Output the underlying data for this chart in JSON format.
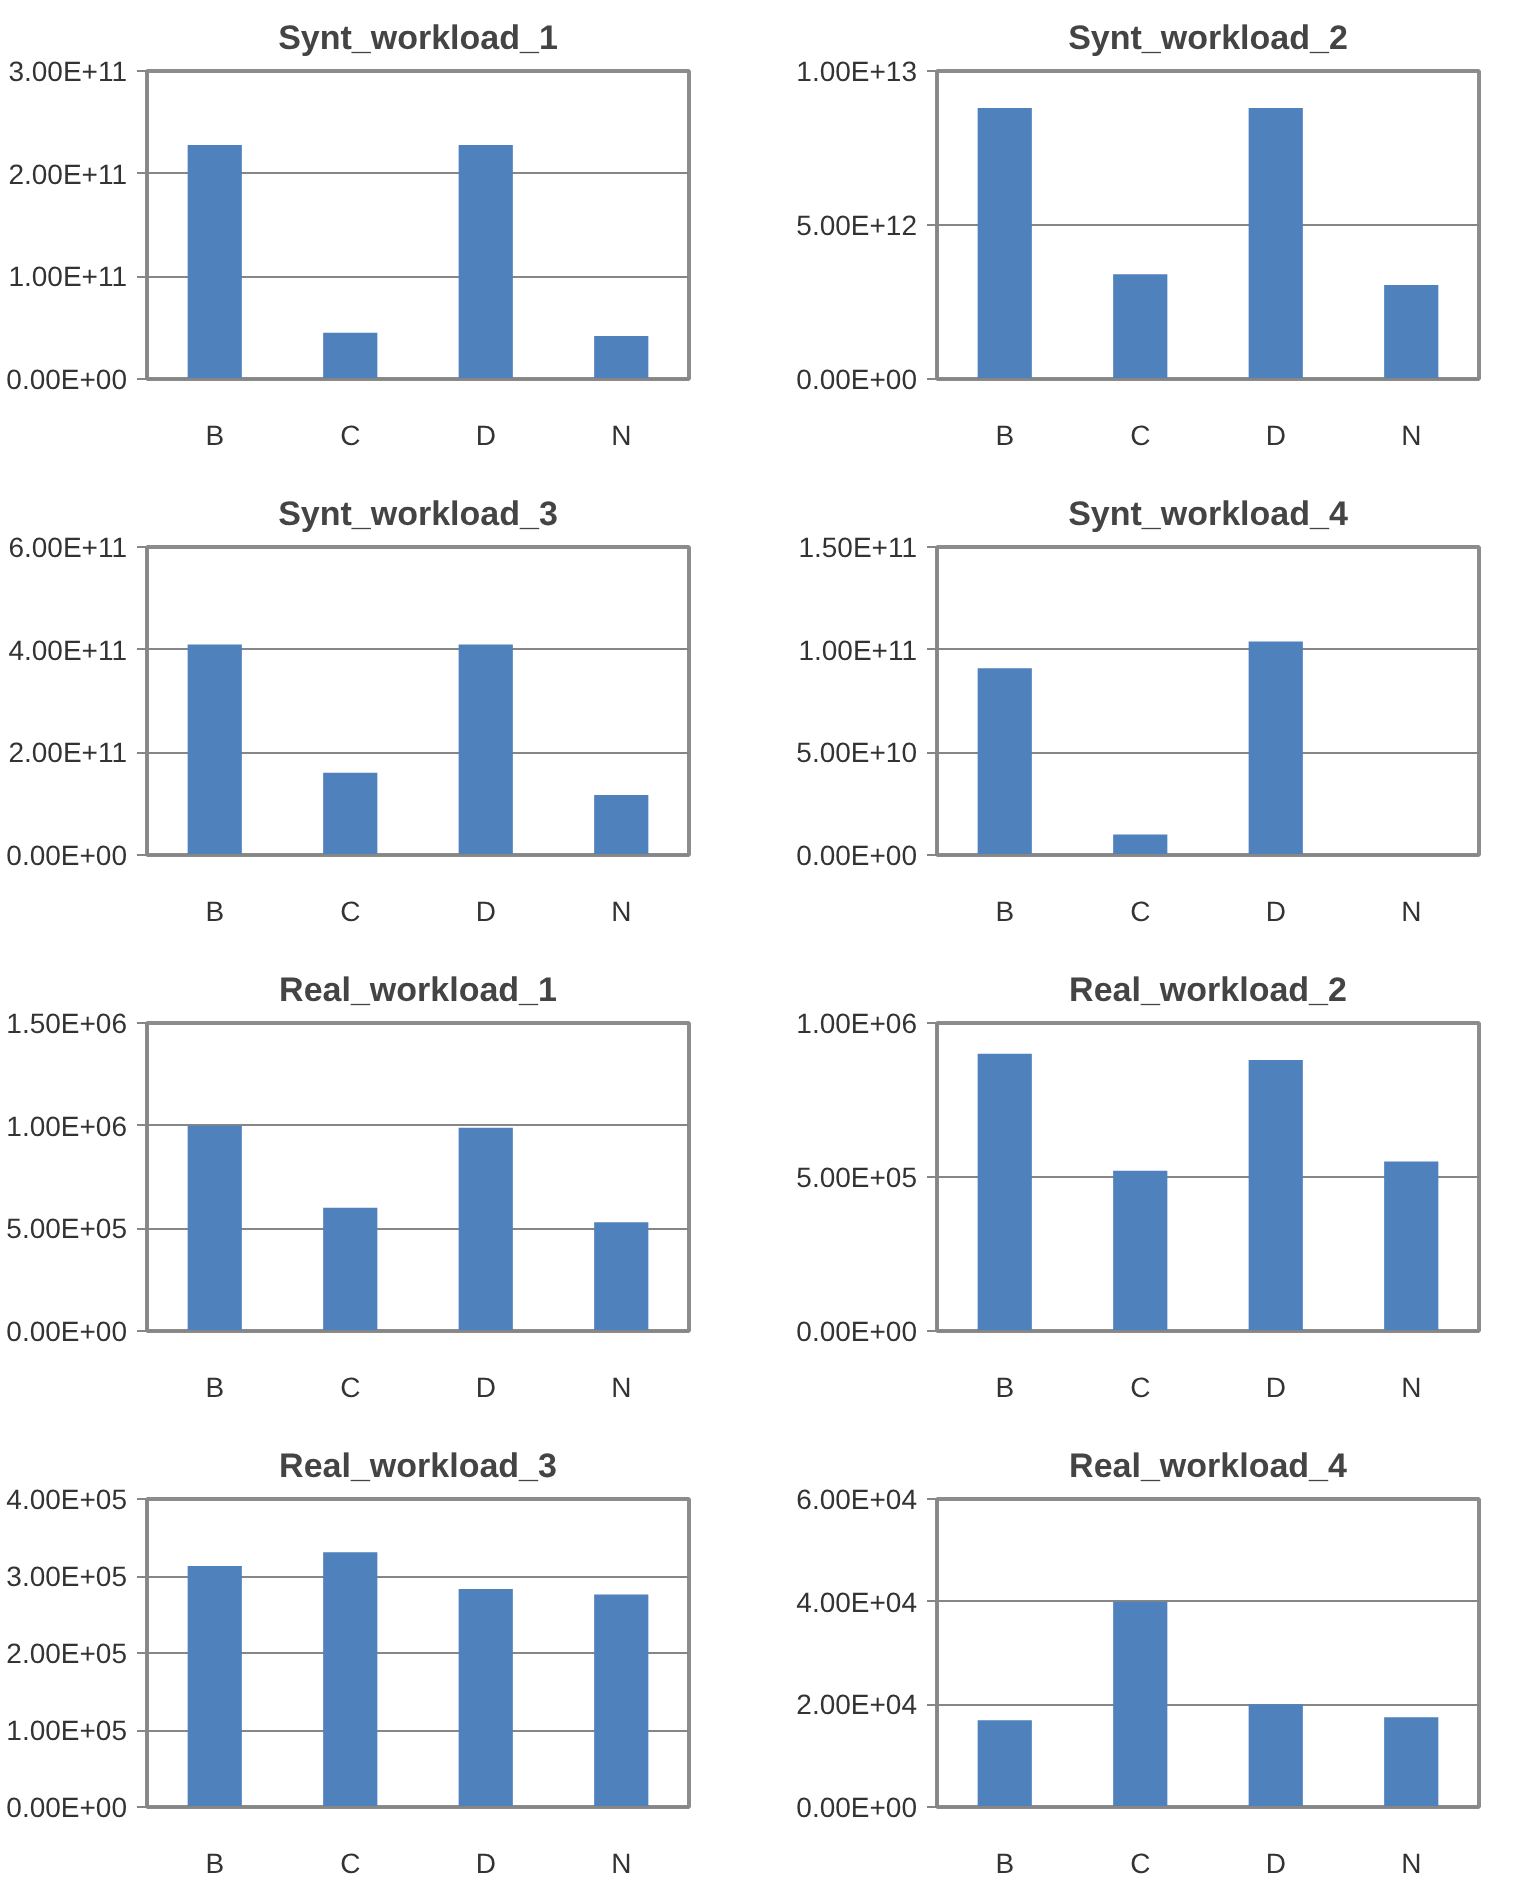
{
  "chart_data": [
    {
      "type": "bar",
      "title": "Synt_workload_1",
      "categories": [
        "B",
        "C",
        "D",
        "N"
      ],
      "values": [
        228000000000.0,
        45000000000.0,
        228000000000.0,
        42000000000.0
      ],
      "color": "#4f81bd",
      "ylim": [
        0,
        300000000000.0
      ],
      "yticks": [
        {
          "value": 0,
          "label": "0.00E+00"
        },
        {
          "value": 100000000000.0,
          "label": "1.00E+11"
        },
        {
          "value": 200000000000.0,
          "label": "2.00E+11"
        },
        {
          "value": 300000000000.0,
          "label": "3.00E+11"
        }
      ],
      "grid": "y"
    },
    {
      "type": "bar",
      "title": "Synt_workload_2",
      "categories": [
        "B",
        "C",
        "D",
        "N"
      ],
      "values": [
        8800000000000.0,
        3400000000000.0,
        8800000000000.0,
        3050000000000.0
      ],
      "color": "#4f81bd",
      "ylim": [
        0,
        10000000000000.0
      ],
      "yticks": [
        {
          "value": 0,
          "label": "0.00E+00"
        },
        {
          "value": 5000000000000.0,
          "label": "5.00E+12"
        },
        {
          "value": 10000000000000.0,
          "label": "1.00E+13"
        }
      ],
      "grid": "y"
    },
    {
      "type": "bar",
      "title": "Synt_workload_3",
      "categories": [
        "B",
        "C",
        "D",
        "N"
      ],
      "values": [
        410000000000.0,
        160000000000.0,
        410000000000.0,
        117000000000.0
      ],
      "color": "#4f81bd",
      "ylim": [
        0,
        600000000000.0
      ],
      "yticks": [
        {
          "value": 0,
          "label": "0.00E+00"
        },
        {
          "value": 200000000000.0,
          "label": "2.00E+11"
        },
        {
          "value": 400000000000.0,
          "label": "4.00E+11"
        },
        {
          "value": 600000000000.0,
          "label": "6.00E+11"
        }
      ],
      "grid": "y"
    },
    {
      "type": "bar",
      "title": "Synt_workload_4",
      "categories": [
        "B",
        "C",
        "D",
        "N"
      ],
      "values": [
        91000000000.0,
        10000000000.0,
        104000000000.0,
        0
      ],
      "color": "#4f81bd",
      "ylim": [
        0,
        150000000000.0
      ],
      "yticks": [
        {
          "value": 0,
          "label": "0.00E+00"
        },
        {
          "value": 50000000000.0,
          "label": "5.00E+10"
        },
        {
          "value": 100000000000.0,
          "label": "1.00E+11"
        },
        {
          "value": 150000000000.0,
          "label": "1.50E+11"
        }
      ],
      "grid": "y"
    },
    {
      "type": "bar",
      "title": "Real_workload_1",
      "categories": [
        "B",
        "C",
        "D",
        "N"
      ],
      "values": [
        1000000.0,
        600000.0,
        990000.0,
        530000.0
      ],
      "color": "#4f81bd",
      "ylim": [
        0,
        1500000.0
      ],
      "yticks": [
        {
          "value": 0,
          "label": "0.00E+00"
        },
        {
          "value": 500000.0,
          "label": "5.00E+05"
        },
        {
          "value": 1000000.0,
          "label": "1.00E+06"
        },
        {
          "value": 1500000.0,
          "label": "1.50E+06"
        }
      ],
      "grid": "y"
    },
    {
      "type": "bar",
      "title": "Real_workload_2",
      "categories": [
        "B",
        "C",
        "D",
        "N"
      ],
      "values": [
        900000.0,
        520000.0,
        880000.0,
        550000.0
      ],
      "color": "#4f81bd",
      "ylim": [
        0,
        1000000.0
      ],
      "yticks": [
        {
          "value": 0,
          "label": "0.00E+00"
        },
        {
          "value": 500000.0,
          "label": "5.00E+05"
        },
        {
          "value": 1000000.0,
          "label": "1.00E+06"
        }
      ],
      "grid": "y"
    },
    {
      "type": "bar",
      "title": "Real_workload_3",
      "categories": [
        "B",
        "C",
        "D",
        "N"
      ],
      "values": [
        313000.0,
        331000.0,
        283000.0,
        276000.0
      ],
      "color": "#4f81bd",
      "ylim": [
        0,
        400000.0
      ],
      "yticks": [
        {
          "value": 0,
          "label": "0.00E+00"
        },
        {
          "value": 100000.0,
          "label": "1.00E+05"
        },
        {
          "value": 200000.0,
          "label": "2.00E+05"
        },
        {
          "value": 300000.0,
          "label": "3.00E+05"
        },
        {
          "value": 400000.0,
          "label": "4.00E+05"
        }
      ],
      "grid": "y"
    },
    {
      "type": "bar",
      "title": "Real_workload_4",
      "categories": [
        "B",
        "C",
        "D",
        "N"
      ],
      "values": [
        16900.0,
        40000.0,
        20000.0,
        17500.0
      ],
      "color": "#4f81bd",
      "ylim": [
        0,
        60000.0
      ],
      "yticks": [
        {
          "value": 0,
          "label": "0.00E+00"
        },
        {
          "value": 20000.0,
          "label": "2.00E+04"
        },
        {
          "value": 40000.0,
          "label": "4.00E+04"
        },
        {
          "value": 60000.0,
          "label": "6.00E+04"
        }
      ],
      "grid": "y"
    }
  ]
}
